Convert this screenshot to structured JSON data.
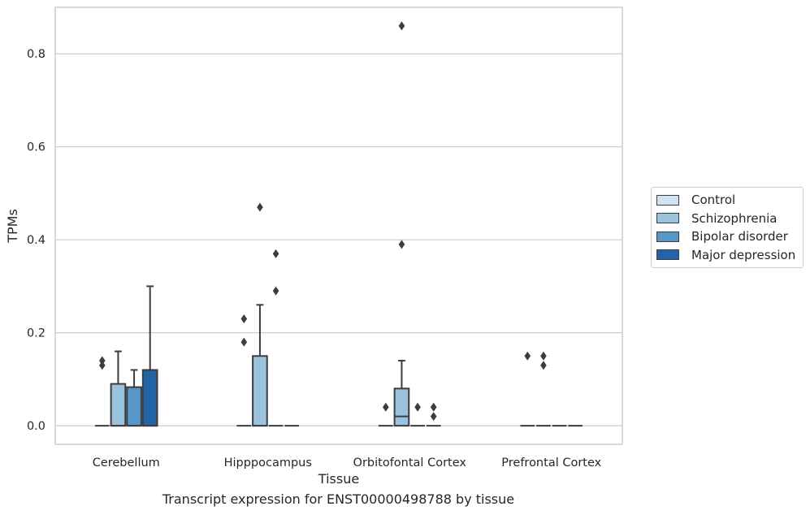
{
  "chart_data": {
    "type": "box",
    "xlabel": "Tissue",
    "ylabel": "TPMs",
    "ylim": [
      -0.04,
      0.9
    ],
    "yticks": [
      "0.0",
      "0.2",
      "0.4",
      "0.6",
      "0.8"
    ],
    "ytick_values": [
      0.0,
      0.2,
      0.4,
      0.6,
      0.8
    ],
    "grid": true,
    "legend_position": "right",
    "categories": [
      "Cerebellum",
      "Hipppocampus",
      "Orbitofontal Cortex",
      "Prefrontal Cortex"
    ],
    "series": [
      {
        "name": "Control",
        "color": "#d0e1f2",
        "boxes": [
          {
            "q1": 0,
            "median": 0,
            "q3": 0,
            "whisker_low": 0,
            "whisker_high": 0,
            "outliers": [
              0.14,
              0.13
            ]
          },
          {
            "q1": 0,
            "median": 0,
            "q3": 0,
            "whisker_low": 0,
            "whisker_high": 0,
            "outliers": [
              0.23,
              0.18
            ]
          },
          {
            "q1": 0,
            "median": 0,
            "q3": 0,
            "whisker_low": 0,
            "whisker_high": 0,
            "outliers": [
              0.04
            ]
          },
          {
            "q1": 0,
            "median": 0,
            "q3": 0,
            "whisker_low": 0,
            "whisker_high": 0,
            "outliers": [
              0.15
            ]
          }
        ]
      },
      {
        "name": "Schizophrenia",
        "color": "#9ac4dd",
        "boxes": [
          {
            "q1": 0,
            "median": 0,
            "q3": 0.09,
            "whisker_low": 0,
            "whisker_high": 0.16,
            "outliers": []
          },
          {
            "q1": 0,
            "median": 0,
            "q3": 0.15,
            "whisker_low": 0,
            "whisker_high": 0.26,
            "outliers": [
              0.47
            ]
          },
          {
            "q1": 0,
            "median": 0.02,
            "q3": 0.08,
            "whisker_low": 0,
            "whisker_high": 0.14,
            "outliers": [
              0.86,
              0.39
            ]
          },
          {
            "q1": 0,
            "median": 0,
            "q3": 0,
            "whisker_low": 0,
            "whisker_high": 0,
            "outliers": [
              0.15,
              0.13
            ]
          }
        ]
      },
      {
        "name": "Bipolar disorder",
        "color": "#5497c8",
        "boxes": [
          {
            "q1": 0,
            "median": 0,
            "q3": 0.083,
            "whisker_low": 0,
            "whisker_high": 0.12,
            "outliers": []
          },
          {
            "q1": 0,
            "median": 0,
            "q3": 0,
            "whisker_low": 0,
            "whisker_high": 0,
            "outliers": [
              0.37,
              0.29
            ]
          },
          {
            "q1": 0,
            "median": 0,
            "q3": 0,
            "whisker_low": 0,
            "whisker_high": 0,
            "outliers": [
              0.04
            ]
          },
          {
            "q1": 0,
            "median": 0,
            "q3": 0,
            "whisker_low": 0,
            "whisker_high": 0,
            "outliers": []
          }
        ]
      },
      {
        "name": "Major depression",
        "color": "#2264a5",
        "boxes": [
          {
            "q1": 0,
            "median": 0,
            "q3": 0.12,
            "whisker_low": 0,
            "whisker_high": 0.3,
            "outliers": []
          },
          {
            "q1": 0,
            "median": 0,
            "q3": 0,
            "whisker_low": 0,
            "whisker_high": 0,
            "outliers": []
          },
          {
            "q1": 0,
            "median": 0,
            "q3": 0,
            "whisker_low": 0,
            "whisker_high": 0,
            "outliers": [
              0.04,
              0.02
            ]
          },
          {
            "q1": 0,
            "median": 0,
            "q3": 0,
            "whisker_low": 0,
            "whisker_high": 0,
            "outliers": []
          }
        ]
      }
    ]
  },
  "caption": "Transcript expression for ENST00000498788 by tissue"
}
